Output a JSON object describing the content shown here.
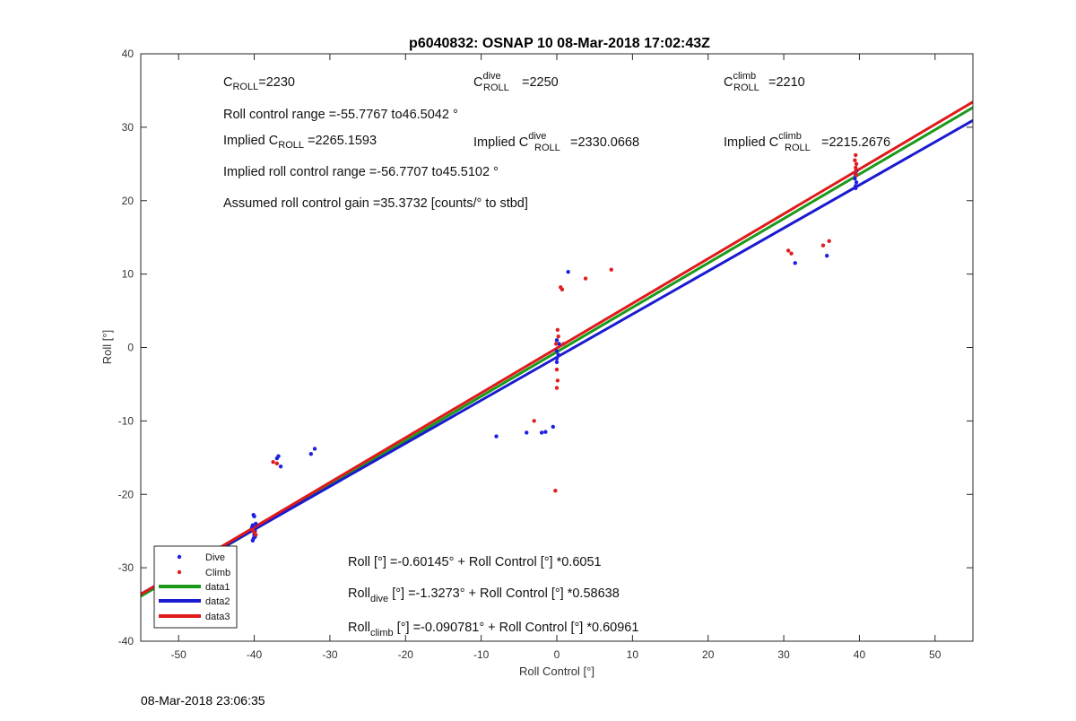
{
  "chart_data": {
    "type": "scatter",
    "title": "p6040832: OSNAP 10 08-Mar-2018 17:02:43Z",
    "xlabel": "Roll Control [°]",
    "ylabel": "Roll [°]",
    "xlim": [
      -55,
      55
    ],
    "ylim": [
      -40,
      40
    ],
    "xticks": [
      -50,
      -40,
      -30,
      -20,
      -10,
      0,
      10,
      20,
      30,
      40,
      50
    ],
    "yticks": [
      -40,
      -30,
      -20,
      -10,
      0,
      10,
      20,
      30,
      40
    ],
    "grid": false,
    "legend_placement": "bottom-left",
    "series": [
      {
        "name": "Dive",
        "kind": "points",
        "color": "#1f1fe0",
        "x": [
          -40.2,
          -40.1,
          -40,
          -39.9,
          -40.3,
          -39.8,
          -40,
          -40.1,
          -39.9,
          -40.2,
          -37,
          -36.8,
          -36.5,
          -32.5,
          -32,
          -8,
          -4,
          -2,
          -1.5,
          -0.5,
          0,
          0,
          0,
          0.2,
          0,
          0.3,
          1.5,
          31.5,
          35.7,
          39.5,
          39.6,
          39.4,
          39.5,
          39.5,
          39.6
        ],
        "y": [
          -26.3,
          -26,
          -25.5,
          -25,
          -24.5,
          -24,
          -23,
          -22.8,
          -25.8,
          -24.2,
          -15.1,
          -14.8,
          -16.2,
          -14.5,
          -13.8,
          -12.1,
          -11.6,
          -11.6,
          -11.5,
          -10.8,
          -0.5,
          -1.5,
          -2,
          -1,
          1,
          0.5,
          10.3,
          11.5,
          12.5,
          22,
          22.5,
          23,
          23.5,
          21.7,
          24
        ],
        "marker": "."
      },
      {
        "name": "Climb",
        "kind": "points",
        "color": "#e01f1f",
        "x": [
          -40,
          -40.2,
          -39.8,
          -37.5,
          -37,
          -3,
          -0.2,
          0,
          0.1,
          0,
          0.1,
          -0.1,
          0.2,
          0.5,
          0.7,
          0.9,
          3.8,
          7.2,
          30.6,
          31,
          35.2,
          36,
          39.5,
          39.6,
          39.4,
          39.5,
          39.6,
          39.5
        ],
        "y": [
          -25.2,
          -24.8,
          -25.5,
          -15.6,
          -15.8,
          -10,
          -19.5,
          -5.5,
          2.4,
          -3,
          -4.5,
          0.5,
          1.5,
          8.2,
          7.9,
          0.5,
          9.4,
          10.6,
          13.2,
          12.8,
          13.9,
          14.5,
          24,
          25,
          25.5,
          26.2,
          23.5,
          24.5
        ],
        "marker": "."
      },
      {
        "name": "data1",
        "kind": "line",
        "color": "#1a9a1a",
        "intercept": -0.60145,
        "slope": 0.6051
      },
      {
        "name": "data2",
        "kind": "line",
        "color": "#1a1ad0",
        "intercept": -1.3273,
        "slope": 0.58638
      },
      {
        "name": "data3",
        "kind": "line",
        "color": "#e01a1a",
        "intercept": -0.090781,
        "slope": 0.60961
      }
    ],
    "annotations": {
      "c_roll": {
        "prefix": "C",
        "sub": "ROLL",
        "sup": "",
        "text": "=2230"
      },
      "c_roll_dive": {
        "prefix": "C",
        "sub": "ROLL",
        "sup": "dive",
        "text": "=2250"
      },
      "c_roll_climb": {
        "prefix": "C",
        "sub": "ROLL",
        "sup": "climb",
        "text": "=2210"
      },
      "roll_range": "Roll control range =-55.7767 to46.5042 °",
      "implied_c_roll": {
        "prefix": "Implied C",
        "sub": "ROLL",
        "sup": "",
        "text": " =2265.1593"
      },
      "implied_c_roll_dive": {
        "prefix": "Implied C",
        "sub": "ROLL",
        "sup": "dive",
        "text": " =2330.0668"
      },
      "implied_c_roll_climb": {
        "prefix": "Implied C",
        "sub": "ROLL",
        "sup": "climb",
        "text": " =2215.2676"
      },
      "implied_range": "Implied roll control range =-56.7707 to45.5102 °",
      "gain": "Assumed roll control gain =35.3732 [counts/° to stbd]",
      "fit_all": "Roll [°] =-0.60145° + Roll Control [°] *0.6051",
      "fit_dive": {
        "prefix": "Roll",
        "sub": "dive",
        "rest": " [°] =-1.3273° + Roll Control [°] *0.58638"
      },
      "fit_climb": {
        "prefix": "Roll",
        "sub": "climb",
        "rest": " [°] =-0.090781° + Roll Control [°] *0.60961"
      }
    }
  },
  "timestamp": "08-Mar-2018 23:06:35"
}
